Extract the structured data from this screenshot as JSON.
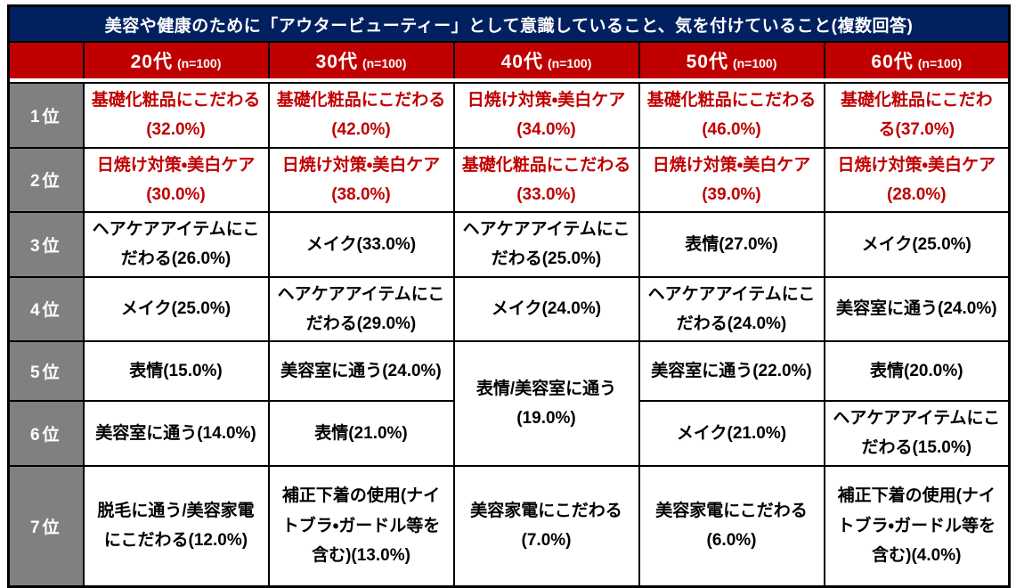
{
  "title": "美容や健康のために「アウタービューティー」として意識していること、気を付けていること(複数回答)",
  "header": {
    "rank_column_label": "",
    "columns": [
      {
        "age": "20代",
        "n": "(n=100)"
      },
      {
        "age": "30代",
        "n": "(n=100)"
      },
      {
        "age": "40代",
        "n": "(n=100)"
      },
      {
        "age": "50代",
        "n": "(n=100)"
      },
      {
        "age": "60代",
        "n": "(n=100)"
      }
    ]
  },
  "rows": [
    {
      "rank": "1位",
      "cells": [
        "基礎化粧品にこだわる(32.0%)",
        "基礎化粧品にこだわる(42.0%)",
        "日焼け対策・美白ケア(34.0%)",
        "基礎化粧品にこだわる(46.0%)",
        "基礎化粧品にこだわる(37.0%)"
      ]
    },
    {
      "rank": "2位",
      "cells": [
        "日焼け対策・美白ケア(30.0%)",
        "日焼け対策・美白ケア(38.0%)",
        "基礎化粧品にこだわる(33.0%)",
        "日焼け対策・美白ケア(39.0%)",
        "日焼け対策・美白ケア(28.0%)"
      ]
    },
    {
      "rank": "3位",
      "cells": [
        "ヘアケアアイテムにこだわる(26.0%)",
        "メイク(33.0%)",
        "ヘアケアアイテムにこだわる(25.0%)",
        "表情(27.0%)",
        "メイク(25.0%)"
      ]
    },
    {
      "rank": "4位",
      "cells": [
        "メイク(25.0%)",
        "ヘアケアアイテムにこだわる(29.0%)",
        "メイク(24.0%)",
        "ヘアケアアイテムにこだわる(24.0%)",
        "美容室に通う(24.0%)"
      ]
    },
    {
      "rank": "5位",
      "cells": [
        "表情(15.0%)",
        "美容室に通う(24.0%)",
        "表情/美容室に通う(19.0%)",
        "美容室に通う(22.0%)",
        "表情(20.0%)"
      ]
    },
    {
      "rank": "6位",
      "cells": [
        "美容室に通う(14.0%)",
        "表情(21.0%)",
        "メイク(21.0%)",
        "ヘアケアアイテムにこだわる(15.0%)"
      ]
    },
    {
      "rank": "7位",
      "cells": [
        "脱毛に通う/美容家電にこだわる(12.0%)",
        "補正下着の使用(ナイトブラ・ガードル等を含む)(13.0%)",
        "美容家電にこだわる(7.0%)",
        "美容家電にこだわる(6.0%)",
        "補正下着の使用(ナイトブラ・ガードル等を含む)(4.0%)"
      ]
    }
  ],
  "colors": {
    "title_bg": "#002060",
    "header_bg": "#C00000",
    "rank_bg": "#808080",
    "highlight_text": "#C00000",
    "body_text": "#000000",
    "border": "#000000"
  },
  "chart_data": {
    "type": "table",
    "title": "美容や健康のために「アウタービューティー」として意識していること、気を付けていること(複数回答)",
    "columns": [
      "20代 (n=100)",
      "30代 (n=100)",
      "40代 (n=100)",
      "50代 (n=100)",
      "60代 (n=100)"
    ],
    "rank_labels": [
      "1位",
      "2位",
      "3位",
      "4位",
      "5位",
      "6位",
      "7位"
    ],
    "series": [
      {
        "name": "20代",
        "n": 100,
        "items": [
          {
            "rank": 1,
            "item": "基礎化粧品にこだわる",
            "pct": 32.0
          },
          {
            "rank": 2,
            "item": "日焼け対策・美白ケア",
            "pct": 30.0
          },
          {
            "rank": 3,
            "item": "ヘアケアアイテムにこだわる",
            "pct": 26.0
          },
          {
            "rank": 4,
            "item": "メイク",
            "pct": 25.0
          },
          {
            "rank": 5,
            "item": "表情",
            "pct": 15.0
          },
          {
            "rank": 6,
            "item": "美容室に通う",
            "pct": 14.0
          },
          {
            "rank": 7,
            "item": "脱毛に通う/美容家電にこだわる",
            "pct": 12.0
          }
        ]
      },
      {
        "name": "30代",
        "n": 100,
        "items": [
          {
            "rank": 1,
            "item": "基礎化粧品にこだわる",
            "pct": 42.0
          },
          {
            "rank": 2,
            "item": "日焼け対策・美白ケア",
            "pct": 38.0
          },
          {
            "rank": 3,
            "item": "メイク",
            "pct": 33.0
          },
          {
            "rank": 4,
            "item": "ヘアケアアイテムにこだわる",
            "pct": 29.0
          },
          {
            "rank": 5,
            "item": "美容室に通う",
            "pct": 24.0
          },
          {
            "rank": 6,
            "item": "表情",
            "pct": 21.0
          },
          {
            "rank": 7,
            "item": "補正下着の使用(ナイトブラ・ガードル等を含む)",
            "pct": 13.0
          }
        ]
      },
      {
        "name": "40代",
        "n": 100,
        "items": [
          {
            "rank": 1,
            "item": "日焼け対策・美白ケア",
            "pct": 34.0
          },
          {
            "rank": 2,
            "item": "基礎化粧品にこだわる",
            "pct": 33.0
          },
          {
            "rank": 3,
            "item": "ヘアケアアイテムにこだわる",
            "pct": 25.0
          },
          {
            "rank": 4,
            "item": "メイク",
            "pct": 24.0
          },
          {
            "rank": "5-6",
            "item": "表情/美容室に通う",
            "pct": 19.0
          },
          {
            "rank": 7,
            "item": "美容家電にこだわる",
            "pct": 7.0
          }
        ]
      },
      {
        "name": "50代",
        "n": 100,
        "items": [
          {
            "rank": 1,
            "item": "基礎化粧品にこだわる",
            "pct": 46.0
          },
          {
            "rank": 2,
            "item": "日焼け対策・美白ケア",
            "pct": 39.0
          },
          {
            "rank": 3,
            "item": "表情",
            "pct": 27.0
          },
          {
            "rank": 4,
            "item": "ヘアケアアイテムにこだわる",
            "pct": 24.0
          },
          {
            "rank": 5,
            "item": "美容室に通う",
            "pct": 22.0
          },
          {
            "rank": 6,
            "item": "メイク",
            "pct": 21.0
          },
          {
            "rank": 7,
            "item": "美容家電にこだわる",
            "pct": 6.0
          }
        ]
      },
      {
        "name": "60代",
        "n": 100,
        "items": [
          {
            "rank": 1,
            "item": "基礎化粧品にこだわる",
            "pct": 37.0
          },
          {
            "rank": 2,
            "item": "日焼け対策・美白ケア",
            "pct": 28.0
          },
          {
            "rank": 3,
            "item": "メイク",
            "pct": 25.0
          },
          {
            "rank": 4,
            "item": "美容室に通う",
            "pct": 24.0
          },
          {
            "rank": 5,
            "item": "表情",
            "pct": 20.0
          },
          {
            "rank": 6,
            "item": "ヘアケアアイテムにこだわる",
            "pct": 15.0
          },
          {
            "rank": 7,
            "item": "補正下着の使用(ナイトブラ・ガードル等を含む)",
            "pct": 4.0
          }
        ]
      }
    ]
  }
}
